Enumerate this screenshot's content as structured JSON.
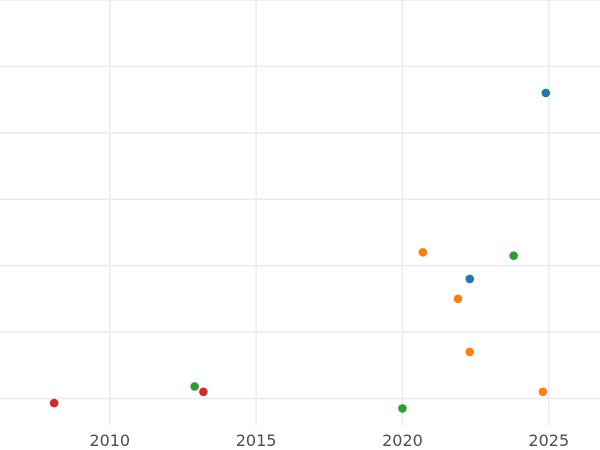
{
  "chart_data": {
    "type": "scatter",
    "title": "",
    "xlabel": "",
    "ylabel": "",
    "xlim": [
      2006.25,
      2026.75
    ],
    "ylim": [
      0,
      6.4
    ],
    "x_ticks": [
      2010,
      2015,
      2020,
      2025
    ],
    "x_tick_labels": [
      "2010",
      "2015",
      "2020",
      "2025"
    ],
    "y_grid": [
      0.4,
      1.4,
      2.4,
      3.4,
      4.4,
      5.4,
      6.4
    ],
    "grid": true,
    "legend": "none",
    "series": [
      {
        "color": "#1f77b4",
        "points": [
          {
            "x": 2024.9,
            "y": 5.0
          },
          {
            "x": 2022.3,
            "y": 2.2
          }
        ]
      },
      {
        "color": "#ff7f0e",
        "points": [
          {
            "x": 2020.7,
            "y": 2.6
          },
          {
            "x": 2021.9,
            "y": 1.9
          },
          {
            "x": 2022.3,
            "y": 1.1
          },
          {
            "x": 2024.8,
            "y": 0.5
          }
        ]
      },
      {
        "color": "#2ca02c",
        "points": [
          {
            "x": 2023.8,
            "y": 2.55
          },
          {
            "x": 2012.9,
            "y": 0.58
          },
          {
            "x": 2020.0,
            "y": 0.25
          }
        ]
      },
      {
        "color": "#d62728",
        "points": [
          {
            "x": 2008.1,
            "y": 0.33
          },
          {
            "x": 2013.2,
            "y": 0.5
          }
        ]
      }
    ]
  }
}
